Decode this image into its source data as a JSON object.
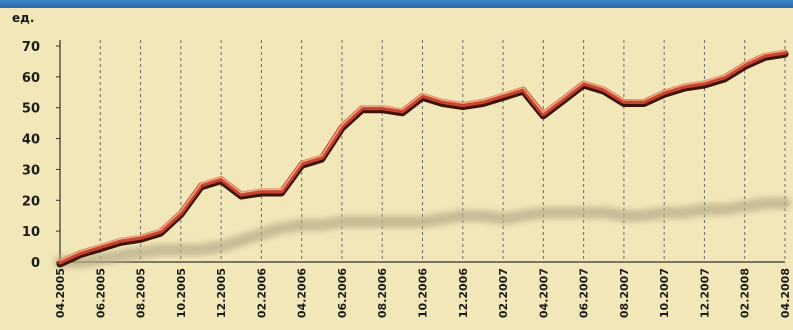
{
  "chart_data": {
    "type": "line",
    "ylabel": "ед.",
    "ylim": [
      0,
      70
    ],
    "yticks": [
      0,
      10,
      20,
      30,
      40,
      50,
      60,
      70
    ],
    "grid": "vertical-dashed",
    "x_tick_labels": [
      "04.2005",
      "06.2005",
      "08.2005",
      "10.2005",
      "12.2005",
      "02.2006",
      "04.2006",
      "06.2006",
      "08.2006",
      "10.2006",
      "12.2006",
      "02.2007",
      "04.2007",
      "06.2007",
      "08.2007",
      "10.2007",
      "12.2007",
      "02.2008",
      "04.2008"
    ],
    "x": [
      "04.2005",
      "05.2005",
      "06.2005",
      "07.2005",
      "08.2005",
      "09.2005",
      "10.2005",
      "11.2005",
      "12.2005",
      "01.2006",
      "02.2006",
      "03.2006",
      "04.2006",
      "05.2006",
      "06.2006",
      "07.2006",
      "08.2006",
      "09.2006",
      "10.2006",
      "11.2006",
      "12.2006",
      "01.2007",
      "02.2007",
      "03.2007",
      "04.2007",
      "05.2007",
      "06.2007",
      "07.2007",
      "08.2007",
      "09.2007",
      "10.2007",
      "11.2007",
      "12.2007",
      "01.2008",
      "02.2008",
      "03.2008",
      "04.2008"
    ],
    "series": [
      {
        "values": [
          0,
          3,
          5,
          7,
          8,
          10,
          16,
          25,
          27,
          22,
          23,
          23,
          32,
          34,
          44,
          50,
          50,
          49,
          54,
          52,
          51,
          52,
          54,
          56,
          48,
          53,
          58,
          56,
          52,
          52,
          55,
          57,
          58,
          60,
          64,
          67,
          68
        ],
        "color": "#c8442a"
      },
      {
        "values": [
          0,
          0,
          1,
          2,
          3,
          4,
          4,
          4,
          5,
          7,
          9,
          11,
          12,
          12,
          13,
          13,
          13,
          13,
          13,
          14,
          15,
          15,
          14,
          15,
          16,
          16,
          16,
          16,
          15,
          15,
          16,
          16,
          17,
          17,
          18,
          19,
          19
        ],
        "color": "#b8ae8a"
      }
    ]
  }
}
